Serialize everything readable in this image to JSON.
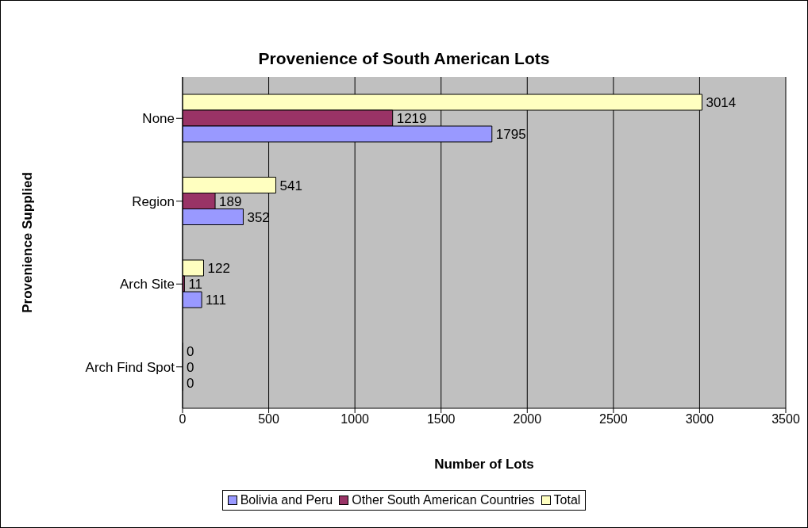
{
  "chart_data": {
    "type": "bar",
    "orientation": "horizontal",
    "title": "Provenience of South American Lots",
    "xlabel": "Number of Lots",
    "ylabel": "Provenience Supplied",
    "categories": [
      "None",
      "Region",
      "Arch Site",
      "Arch Find Spot"
    ],
    "series": [
      {
        "name": "Bolivia and Peru",
        "color": "#9999ff",
        "values": [
          1795,
          352,
          111,
          0
        ]
      },
      {
        "name": "Other South American Countries",
        "color": "#993366",
        "values": [
          1219,
          189,
          11,
          0
        ]
      },
      {
        "name": "Total",
        "color": "#ffffc0",
        "values": [
          3014,
          541,
          122,
          0
        ]
      }
    ],
    "xlim": [
      0,
      3500
    ],
    "xticks": [
      0,
      500,
      1000,
      1500,
      2000,
      2500,
      3000,
      3500
    ],
    "grid": "x",
    "legend": "bottom",
    "data_labels": true
  }
}
